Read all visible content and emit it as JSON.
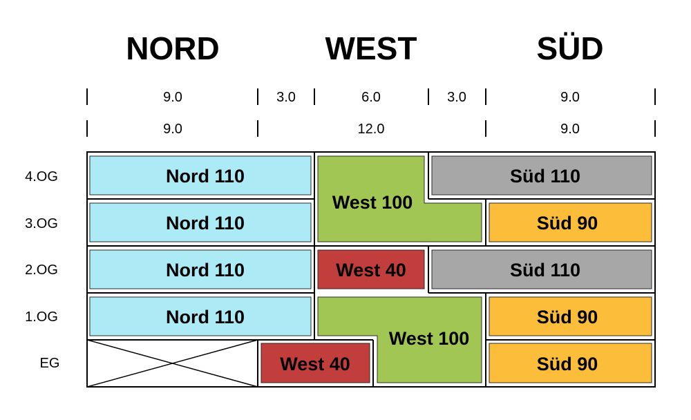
{
  "headers": {
    "nord": "NORD",
    "west": "WEST",
    "sued": "SÜD"
  },
  "dims_row1": [
    "9.0",
    "3.0",
    "6.0",
    "3.0",
    "9.0"
  ],
  "dims_row2": [
    "9.0",
    "12.0",
    "9.0"
  ],
  "levels": [
    "4.OG",
    "3.OG",
    "2.OG",
    "1.OG",
    "EG"
  ],
  "colors": {
    "nord": "#acebf6",
    "west_large": "#a2c653",
    "west_small": "#c13e3c",
    "sued_large": "#a7a7a7",
    "sued_small": "#fbbd3a"
  },
  "units": {
    "nord_4og": "Nord 110",
    "nord_3og": "Nord 110",
    "nord_2og": "Nord 110",
    "nord_1og": "Nord 110",
    "west_upper": "West 100",
    "west_2og": "West 40",
    "west_lower": "West 100",
    "west_eg": "West 40",
    "sued_4og": "Süd 110",
    "sued_3og": "Süd 90",
    "sued_2og": "Süd 110",
    "sued_1og": "Süd 90",
    "sued_eg": "Süd 90"
  }
}
